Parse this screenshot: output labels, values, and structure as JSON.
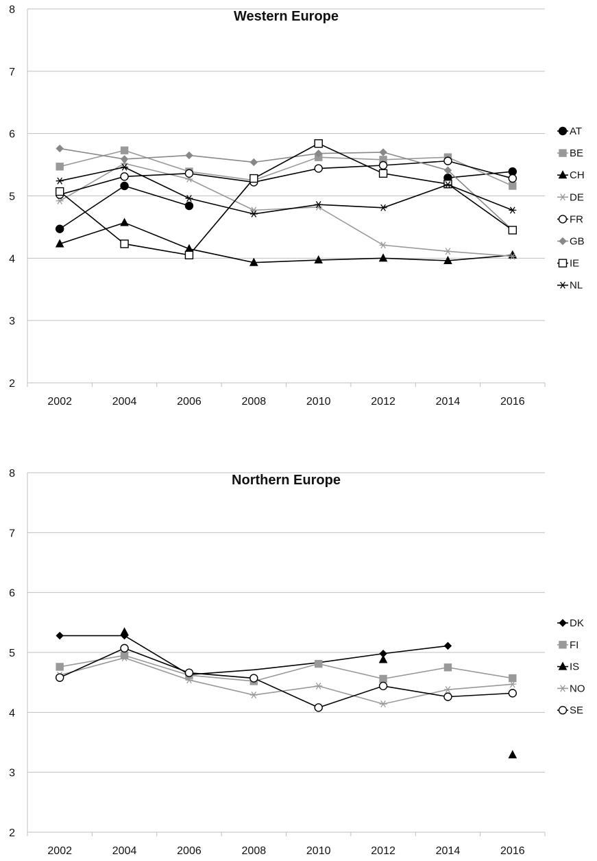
{
  "chart_data": [
    {
      "type": "line",
      "title": "Western Europe",
      "xlabel": "",
      "ylabel": "",
      "ylim": [
        2,
        8
      ],
      "yticks": [
        2,
        3,
        4,
        5,
        6,
        7,
        8
      ],
      "x": [
        2002,
        2004,
        2006,
        2008,
        2010,
        2012,
        2014,
        2016
      ],
      "grid": "horizontal",
      "legend_position": "right",
      "series": [
        {
          "name": "AT",
          "color": "#000000",
          "marker": "circle-filled",
          "values": [
            4.47,
            5.16,
            4.84,
            null,
            null,
            null,
            5.29,
            5.39
          ]
        },
        {
          "name": "BE",
          "color": "#999999",
          "marker": "square-filled",
          "values": [
            5.47,
            5.73,
            5.39,
            5.25,
            5.62,
            5.58,
            5.62,
            5.16
          ]
        },
        {
          "name": "CH",
          "color": "#000000",
          "marker": "triangle-filled",
          "values": [
            4.23,
            4.57,
            4.15,
            3.93,
            3.97,
            4.0,
            3.96,
            4.05
          ]
        },
        {
          "name": "DE",
          "color": "#999999",
          "marker": "star",
          "values": [
            4.92,
            5.52,
            5.27,
            4.77,
            4.82,
            4.21,
            4.11,
            4.03
          ]
        },
        {
          "name": "FR",
          "color": "#000000",
          "marker": "circle-open",
          "values": [
            5.02,
            5.31,
            5.36,
            5.22,
            5.44,
            5.49,
            5.56,
            5.28
          ]
        },
        {
          "name": "GB",
          "color": "#888888",
          "marker": "diamond-filled",
          "values": [
            5.76,
            5.59,
            5.65,
            5.54,
            5.68,
            5.7,
            5.41,
            4.45
          ]
        },
        {
          "name": "IE",
          "color": "#000000",
          "marker": "square-open",
          "values": [
            5.07,
            4.23,
            4.05,
            5.28,
            5.84,
            5.36,
            5.19,
            4.45
          ]
        },
        {
          "name": "NL",
          "color": "#000000",
          "marker": "star",
          "values": [
            5.24,
            5.46,
            4.96,
            4.71,
            4.86,
            4.81,
            5.18,
            4.77
          ]
        }
      ]
    },
    {
      "type": "line",
      "title": "Northern Europe",
      "xlabel": "",
      "ylabel": "",
      "ylim": [
        2,
        8
      ],
      "yticks": [
        2,
        3,
        4,
        5,
        6,
        7,
        8
      ],
      "x": [
        2002,
        2004,
        2006,
        2008,
        2010,
        2012,
        2014,
        2016
      ],
      "grid": "horizontal",
      "legend_position": "right",
      "series": [
        {
          "name": "DK",
          "color": "#000000",
          "marker": "diamond-filled",
          "values": [
            5.28,
            5.28,
            null,
            null,
            null,
            4.98,
            5.11,
            null
          ]
        },
        {
          "name": "FI",
          "color": "#999999",
          "marker": "square-filled",
          "values": [
            4.76,
            4.95,
            4.62,
            4.52,
            4.81,
            4.56,
            4.75,
            4.57
          ]
        },
        {
          "name": "IS",
          "color": "#000000",
          "marker": "triangle-filled",
          "values": [
            null,
            5.34,
            null,
            null,
            null,
            4.88,
            null,
            3.29
          ]
        },
        {
          "name": "NO",
          "color": "#999999",
          "marker": "star",
          "values": [
            4.62,
            4.91,
            4.54,
            4.29,
            4.44,
            4.14,
            4.38,
            4.47
          ]
        },
        {
          "name": "SE",
          "color": "#000000",
          "marker": "circle-open",
          "values": [
            4.58,
            5.07,
            4.66,
            4.57,
            4.08,
            4.44,
            4.26,
            4.32
          ]
        }
      ],
      "extra_lines": [
        {
          "color": "#000000",
          "points": [
            [
              2004,
              5.28
            ],
            [
              2006,
              4.63
            ],
            [
              2008,
              4.71
            ],
            [
              2010,
              4.83
            ],
            [
              2012,
              4.98
            ]
          ]
        }
      ]
    }
  ]
}
